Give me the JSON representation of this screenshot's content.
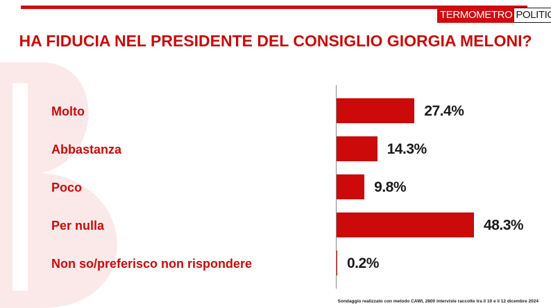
{
  "logo": {
    "part1": "TERMOMETRO",
    "part2": "POLITICO"
  },
  "title": "HA FIDUCIA NEL PRESIDENTE DEL CONSIGLIO GIORGIA MELONI?",
  "footnote": "Sondaggio realizzato con metodo CAWI, 2800 interviste raccolte tra il 10 e il 12 dicembre 2024",
  "colors": {
    "accent": "#cc0a0a",
    "text": "#1a1a1a",
    "axis": "#8a8a8a"
  },
  "chart_data": {
    "type": "bar",
    "orientation": "horizontal",
    "title": "HA FIDUCIA NEL PRESIDENTE DEL CONSIGLIO GIORGIA MELONI?",
    "categories": [
      "Molto",
      "Abbastanza",
      "Poco",
      "Per nulla",
      "Non so/preferisco non rispondere"
    ],
    "values": [
      27.4,
      14.3,
      9.8,
      48.3,
      0.2
    ],
    "value_labels": [
      "27.4%",
      "14.3%",
      "9.8%",
      "48.3%",
      "0.2%"
    ],
    "unit": "%",
    "xlim": [
      0,
      50
    ],
    "grid": false,
    "legend": "none"
  }
}
